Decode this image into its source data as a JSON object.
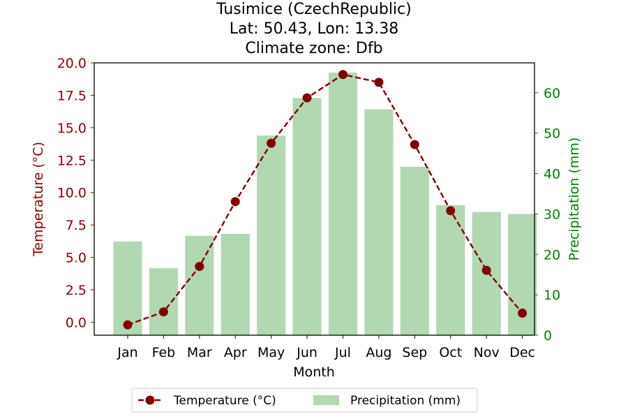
{
  "chart_data": {
    "type": "bar+line",
    "title": [
      "Tusimice (CzechRepublic)",
      "Lat: 50.43, Lon: 13.38",
      "Climate zone: Dfb"
    ],
    "categories": [
      "Jan",
      "Feb",
      "Mar",
      "Apr",
      "May",
      "Jun",
      "Jul",
      "Aug",
      "Sep",
      "Oct",
      "Nov",
      "Dec"
    ],
    "xlabel": "Month",
    "series": [
      {
        "name": "Temperature (°C)",
        "kind": "line",
        "axis": "left",
        "color": "#800000",
        "values": [
          -0.2,
          0.8,
          4.3,
          9.3,
          13.8,
          17.3,
          19.1,
          18.5,
          13.7,
          8.6,
          4.0,
          0.7
        ]
      },
      {
        "name": "Precipitation (mm)",
        "kind": "bar",
        "axis": "right",
        "color": "#b2d8b2",
        "values": [
          23.2,
          16.6,
          24.6,
          25.1,
          49.4,
          58.7,
          65.0,
          55.9,
          41.7,
          32.2,
          30.5,
          30.0
        ]
      }
    ],
    "y_left": {
      "label": "Temperature (°C)",
      "color": "#8b0000",
      "range": [
        -1.0,
        20.0
      ],
      "ticks": [
        "0.0",
        "2.5",
        "5.0",
        "7.5",
        "10.0",
        "12.5",
        "15.0",
        "17.5",
        "20.0"
      ]
    },
    "y_right": {
      "label": "Precipitation (mm)",
      "color": "#008000",
      "range": [
        0,
        67.4
      ],
      "ticks": [
        "0",
        "10",
        "20",
        "30",
        "40",
        "50",
        "60"
      ]
    },
    "grid": false,
    "legend": "bottom-center, outside"
  }
}
